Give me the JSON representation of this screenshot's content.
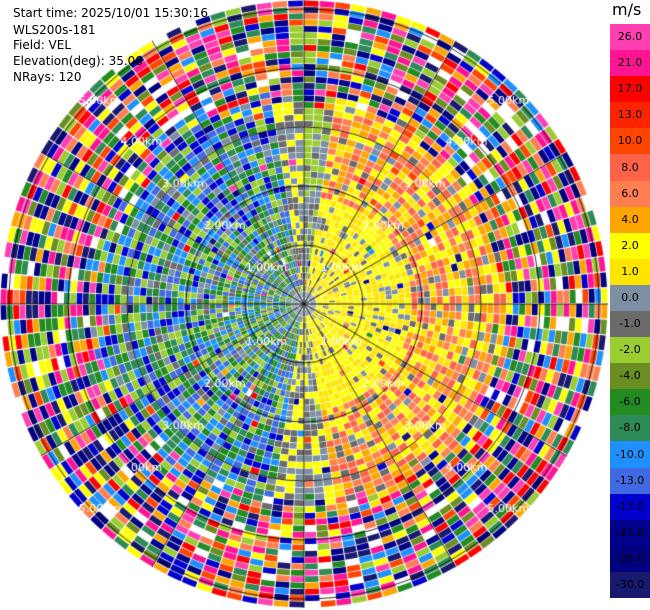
{
  "info": {
    "start_time": "Start time: 2025/10/01 15:30:16",
    "instrument": "WLS200s-181",
    "field": "Field: VEL",
    "elevation": "Elevation(deg): 35.00",
    "nrays": "NRays: 120"
  },
  "range_ring_labels": [
    "1.00km",
    "2.00km",
    "3.00km",
    "4.00km",
    "5.00km"
  ],
  "colorbar": {
    "unit": "m/s",
    "labels": [
      "26.0",
      "21.0",
      "17.0",
      "13.0",
      "10.0",
      "8.0",
      "6.0",
      "4.0",
      "2.0",
      "1.0",
      "0.0",
      "-1.0",
      "-2.0",
      "-4.0",
      "-6.0",
      "-8.0",
      "-10.0",
      "-13.0",
      "-17.0",
      "-21.0",
      "-26.0",
      "-30.0"
    ],
    "colors": [
      "#ff3fb2",
      "#ff1493",
      "#ff0000",
      "#ff2400",
      "#ff4500",
      "#ff6347",
      "#ff7f50",
      "#ffa500",
      "#ffff00",
      "#ffe400",
      "#7c8fa3",
      "#6b6b6b",
      "#9acd32",
      "#6b8e23",
      "#228b22",
      "#2e8b57",
      "#1e90ff",
      "#4169e1",
      "#0000cd",
      "#00008b",
      "#000080",
      "#191970"
    ]
  }
}
